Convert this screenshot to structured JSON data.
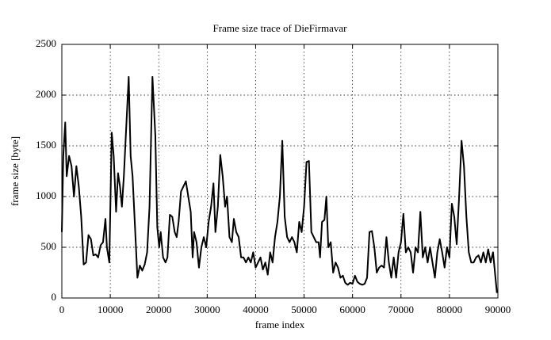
{
  "chart_data": {
    "type": "line",
    "title": "Frame size trace of DieFirmavar",
    "xlabel": "frame index",
    "ylabel": "frame size [byte]",
    "color": "#000000",
    "grid": true,
    "xlim": [
      0,
      90000
    ],
    "xticks": [
      0,
      10000,
      20000,
      30000,
      40000,
      50000,
      60000,
      70000,
      80000,
      90000
    ],
    "ylim": [
      0,
      2500
    ],
    "yticks": [
      0,
      500,
      1000,
      1500,
      2000,
      2500
    ],
    "x": [
      0,
      300,
      700,
      1000,
      1500,
      2000,
      2500,
      3000,
      3500,
      4000,
      4500,
      5000,
      5500,
      6000,
      6500,
      7000,
      7500,
      8000,
      8500,
      9000,
      9300,
      9800,
      10300,
      10700,
      11200,
      11600,
      12000,
      12400,
      12800,
      13800,
      14200,
      14600,
      15100,
      15600,
      16100,
      16600,
      17100,
      17600,
      18100,
      18700,
      19300,
      19700,
      20100,
      20400,
      20900,
      21400,
      21800,
      22300,
      22800,
      23300,
      23700,
      24100,
      24600,
      25100,
      25600,
      26100,
      26600,
      27000,
      27300,
      27800,
      28300,
      28800,
      29300,
      29800,
      30300,
      30800,
      31300,
      31700,
      32200,
      32700,
      33200,
      33700,
      34100,
      34600,
      35100,
      35500,
      36000,
      36500,
      37000,
      37500,
      38000,
      38500,
      39000,
      39500,
      40000,
      40500,
      41000,
      41500,
      42000,
      42500,
      43000,
      43500,
      44000,
      44500,
      45000,
      45500,
      46000,
      46500,
      47000,
      47500,
      48000,
      48500,
      49000,
      49500,
      50000,
      50500,
      51000,
      51500,
      52000,
      52500,
      53000,
      53300,
      53700,
      54200,
      54600,
      55000,
      55500,
      56000,
      56500,
      57000,
      57500,
      58000,
      58500,
      59000,
      59500,
      60000,
      60500,
      61000,
      61500,
      62000,
      62500,
      63000,
      63500,
      64000,
      64500,
      65000,
      65500,
      66000,
      66500,
      67000,
      67500,
      68000,
      68500,
      69000,
      69500,
      70000,
      70500,
      71000,
      71500,
      72000,
      72500,
      73000,
      73500,
      74000,
      74500,
      75000,
      75500,
      76000,
      76500,
      77000,
      77500,
      78000,
      78500,
      79000,
      79500,
      80000,
      80500,
      81000,
      81500,
      82000,
      82500,
      83000,
      83500,
      84000,
      84500,
      85000,
      85500,
      86000,
      86500,
      87000,
      87500,
      88000,
      88500,
      89000,
      89800
    ],
    "values": [
      650,
      1400,
      1730,
      1200,
      1400,
      1300,
      1000,
      1300,
      1100,
      800,
      330,
      350,
      620,
      580,
      420,
      430,
      400,
      520,
      550,
      780,
      500,
      350,
      1630,
      1400,
      850,
      1230,
      1100,
      900,
      1200,
      2180,
      1400,
      1200,
      700,
      200,
      320,
      270,
      330,
      450,
      900,
      2180,
      1600,
      700,
      500,
      650,
      400,
      350,
      400,
      820,
      800,
      650,
      600,
      750,
      1050,
      1100,
      1150,
      1000,
      850,
      400,
      650,
      550,
      300,
      500,
      600,
      500,
      750,
      900,
      1130,
      650,
      900,
      1410,
      1200,
      900,
      1000,
      600,
      550,
      780,
      650,
      600,
      400,
      400,
      350,
      400,
      350,
      450,
      300,
      350,
      400,
      280,
      350,
      230,
      450,
      350,
      600,
      750,
      1000,
      1550,
      800,
      600,
      550,
      600,
      550,
      450,
      750,
      650,
      900,
      1340,
      1350,
      650,
      600,
      550,
      550,
      400,
      750,
      770,
      1000,
      500,
      550,
      250,
      350,
      300,
      200,
      220,
      150,
      130,
      150,
      140,
      220,
      160,
      140,
      130,
      140,
      200,
      650,
      660,
      500,
      250,
      300,
      320,
      300,
      600,
      350,
      200,
      400,
      200,
      450,
      550,
      830,
      450,
      500,
      450,
      250,
      500,
      450,
      850,
      400,
      500,
      350,
      500,
      350,
      200,
      450,
      580,
      450,
      300,
      500,
      400,
      930,
      800,
      530,
      1000,
      1550,
      1300,
      800,
      450,
      350,
      350,
      400,
      420,
      350,
      450,
      350,
      480,
      350,
      450,
      50
    ]
  }
}
